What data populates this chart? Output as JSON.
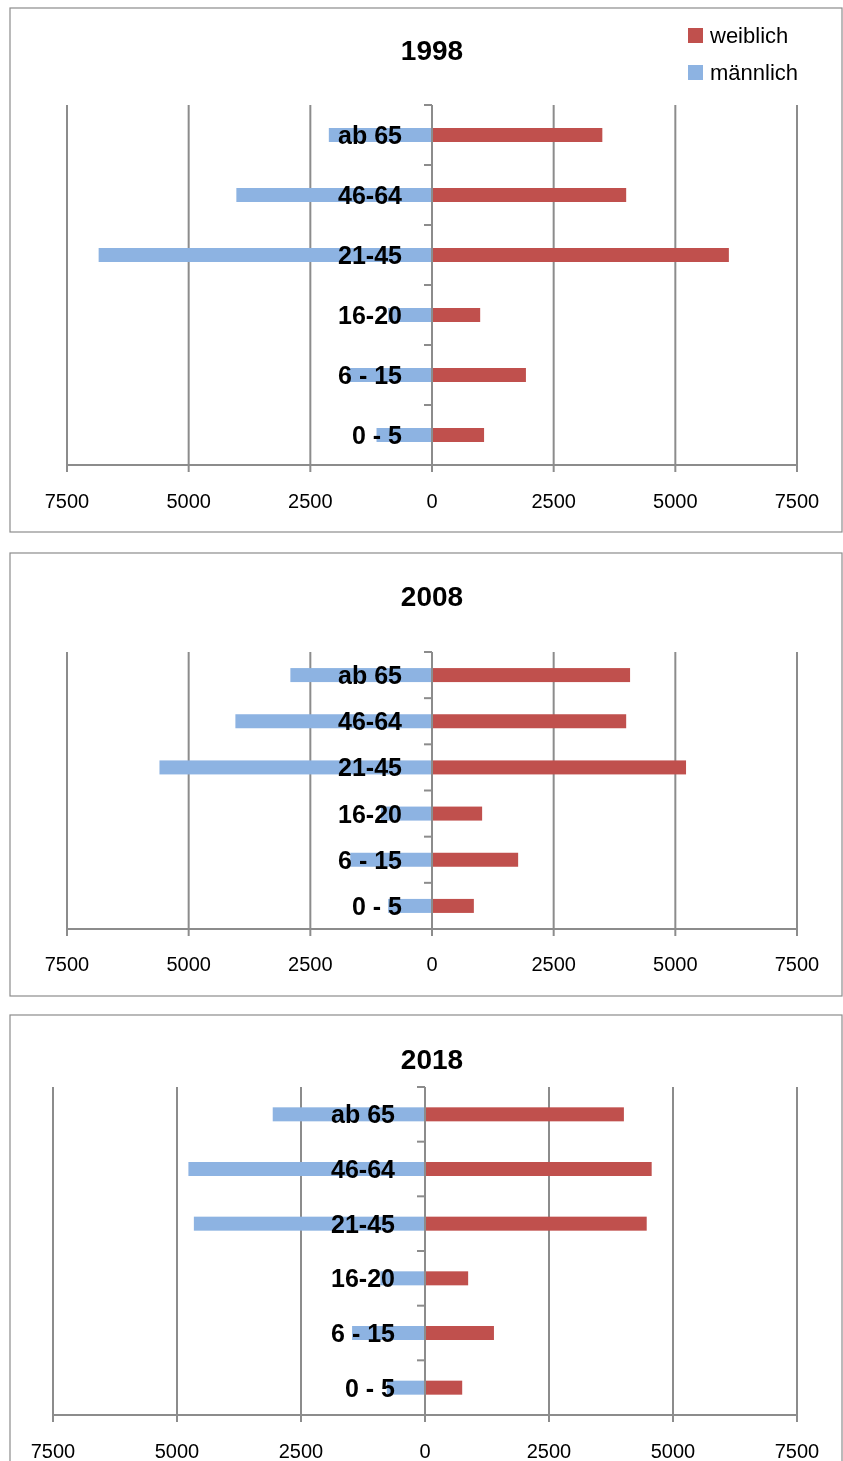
{
  "chart_data": [
    {
      "type": "bar",
      "orientation": "horizontal",
      "title": "1998",
      "categories": [
        "ab 65",
        "46-64",
        "21-45",
        "16-20",
        "6 - 15",
        "0 - 5"
      ],
      "series": [
        {
          "name": "weiblich",
          "color": "#c0504d",
          "values": [
            3500,
            3990,
            6100,
            990,
            1930,
            1070
          ]
        },
        {
          "name": "männlich",
          "color": "#8db3e2",
          "values": [
            -2120,
            -4020,
            -6850,
            -900,
            -1750,
            -1140
          ]
        }
      ],
      "xlim": [
        -7500,
        7500
      ],
      "xticks": [
        {
          "value": -7500,
          "label": "7500"
        },
        {
          "value": -5000,
          "label": "5000"
        },
        {
          "value": -2500,
          "label": "2500"
        },
        0,
        2500,
        5000,
        7500
      ],
      "grid": "x",
      "legend": "top right",
      "stacked": true
    },
    {
      "type": "bar",
      "orientation": "horizontal",
      "title": "2008",
      "categories": [
        "ab 65",
        "46-64",
        "21-45",
        "16-20",
        "6 - 15",
        "0 - 5"
      ],
      "series": [
        {
          "color": "#c0504d",
          "values": [
            4070,
            3990,
            5220,
            1030,
            1770,
            860
          ]
        },
        {
          "color": "#8db3e2",
          "values": [
            -2910,
            -4040,
            -5600,
            -1050,
            -1680,
            -900
          ]
        }
      ],
      "xlim": [
        -7500,
        7500
      ],
      "xticks": [
        {
          "value": -7500,
          "label": "7500"
        },
        {
          "value": -5000,
          "label": "5000"
        },
        {
          "value": -2500,
          "label": "2500"
        },
        0,
        2500,
        5000,
        7500
      ],
      "grid": "x",
      "legend": false,
      "stacked": true
    },
    {
      "type": "bar",
      "orientation": "horizontal",
      "title": "2018",
      "categories": [
        "ab 65",
        "46-64",
        "21-45",
        "16-20",
        "6 - 15",
        "0 - 5"
      ],
      "series": [
        {
          "color": "#c0504d",
          "values": [
            4010,
            4570,
            4470,
            870,
            1390,
            750
          ]
        },
        {
          "color": "#8db3e2",
          "values": [
            -3070,
            -4770,
            -4660,
            -900,
            -1470,
            -770
          ]
        }
      ],
      "xlim": [
        -7500,
        7500
      ],
      "xticks": [
        {
          "value": -7500,
          "label": "7500"
        },
        {
          "value": -5000,
          "label": "5000"
        },
        {
          "value": -2500,
          "label": "2500"
        },
        0,
        2500,
        5000,
        7500
      ],
      "grid": "x",
      "legend": false,
      "stacked": true
    }
  ]
}
